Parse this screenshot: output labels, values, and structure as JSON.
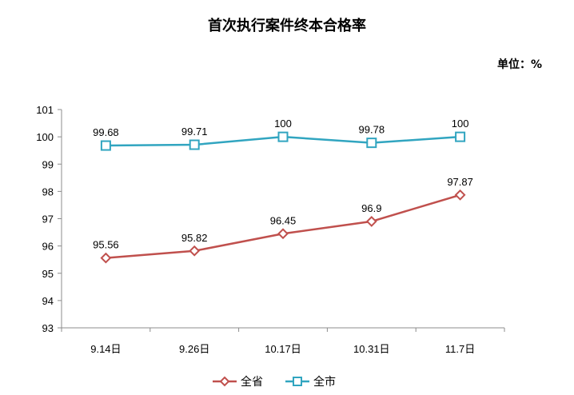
{
  "chart_data": {
    "type": "line",
    "title": "首次执行案件终本合格率",
    "unit_label": "单位：%",
    "categories": [
      "9.14日",
      "9.26日",
      "10.17日",
      "10.31日",
      "11.7日"
    ],
    "ylim": [
      93,
      101
    ],
    "yticks": [
      93,
      94,
      95,
      96,
      97,
      98,
      99,
      100,
      101
    ],
    "grid": false,
    "legend_position": "bottom",
    "series": [
      {
        "name": "全省",
        "values": [
          95.56,
          95.82,
          96.45,
          96.9,
          97.87
        ],
        "labels": [
          "95.56",
          "95.82",
          "96.45",
          "96.9",
          "97.87"
        ],
        "color": "#c0504d",
        "marker": "diamond"
      },
      {
        "name": "全市",
        "values": [
          99.68,
          99.71,
          100,
          99.78,
          100
        ],
        "labels": [
          "99.68",
          "99.71",
          "100",
          "99.78",
          "100"
        ],
        "color": "#31a5c0",
        "marker": "square"
      }
    ]
  }
}
